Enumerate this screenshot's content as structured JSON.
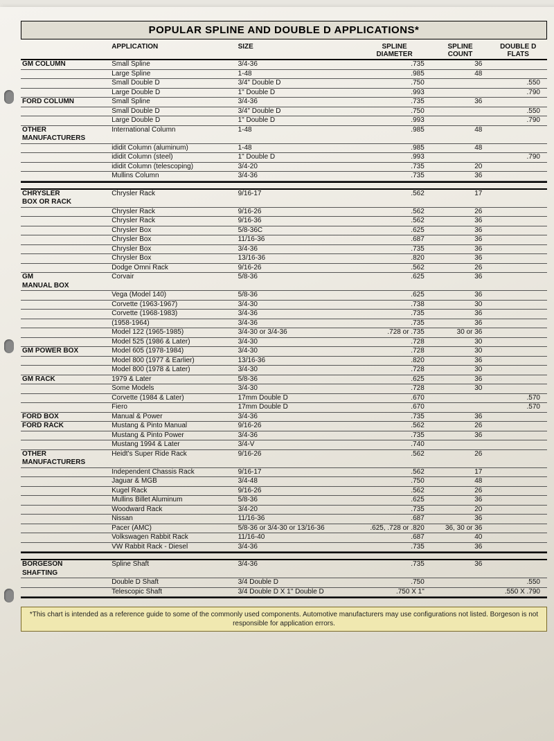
{
  "title": "POPULAR SPLINE AND DOUBLE D APPLICATIONS*",
  "columns": {
    "c1": "",
    "c2": "APPLICATION",
    "c3": "SIZE",
    "c4": "SPLINE",
    "c4b": "DIAMETER",
    "c5": "SPLINE",
    "c5b": "COUNT",
    "c6": "DOUBLE D",
    "c6b": "FLATS"
  },
  "sections": [
    {
      "cat": "GM COLUMN",
      "rows": [
        {
          "app": "Small Spline",
          "size": "3/4-36",
          "dia": ".735",
          "cnt": "36",
          "flat": ""
        },
        {
          "app": "Large Spline",
          "size": "1-48",
          "dia": ".985",
          "cnt": "48",
          "flat": ""
        },
        {
          "app": "Small Double D",
          "size": "3/4\" Double D",
          "dia": ".750",
          "cnt": "",
          "flat": ".550"
        },
        {
          "app": "Large Double D",
          "size": "1\" Double D",
          "dia": ".993",
          "cnt": "",
          "flat": ".790"
        }
      ]
    },
    {
      "cat": "FORD COLUMN",
      "rows": [
        {
          "app": "Small Spline",
          "size": "3/4-36",
          "dia": ".735",
          "cnt": "36",
          "flat": ""
        },
        {
          "app": "Small Double D",
          "size": "3/4\" Double D",
          "dia": ".750",
          "cnt": "",
          "flat": ".550"
        },
        {
          "app": "Large Double D",
          "size": "1\" Double D",
          "dia": ".993",
          "cnt": "",
          "flat": ".790"
        }
      ]
    },
    {
      "cat": "OTHER MANUFACTURERS",
      "rows": [
        {
          "app": "International Column",
          "size": "1-48",
          "dia": ".985",
          "cnt": "48",
          "flat": ""
        },
        {
          "app": "ididit Column (aluminum)",
          "size": "1-48",
          "dia": ".985",
          "cnt": "48",
          "flat": ""
        },
        {
          "app": "ididit Column (steel)",
          "size": "1\" Double D",
          "dia": ".993",
          "cnt": "",
          "flat": ".790"
        },
        {
          "app": "ididit Column (telescoping)",
          "size": "3/4-20",
          "dia": ".735",
          "cnt": "20",
          "flat": ""
        },
        {
          "app": "Mullins Column",
          "size": "3/4-36",
          "dia": ".735",
          "cnt": "36",
          "flat": ""
        }
      ]
    }
  ],
  "sections2": [
    {
      "cat": "CHRYSLER BOX OR RACK",
      "rows": [
        {
          "app": "Chrysler Rack",
          "size": "9/16-17",
          "dia": ".562",
          "cnt": "17",
          "flat": ""
        },
        {
          "app": "Chrysler Rack",
          "size": "9/16-26",
          "dia": ".562",
          "cnt": "26",
          "flat": ""
        },
        {
          "app": "Chrysler Rack",
          "size": "9/16-36",
          "dia": ".562",
          "cnt": "36",
          "flat": ""
        },
        {
          "app": "Chrysler Box",
          "size": "5/8-36C",
          "dia": ".625",
          "cnt": "36",
          "flat": ""
        },
        {
          "app": "Chrysler Box",
          "size": "11/16-36",
          "dia": ".687",
          "cnt": "36",
          "flat": ""
        },
        {
          "app": "Chrysler Box",
          "size": "3/4-36",
          "dia": ".735",
          "cnt": "36",
          "flat": ""
        },
        {
          "app": "Chrysler Box",
          "size": "13/16-36",
          "dia": ".820",
          "cnt": "36",
          "flat": ""
        },
        {
          "app": "Dodge Omni Rack",
          "size": "9/16-26",
          "dia": ".562",
          "cnt": "26",
          "flat": ""
        }
      ]
    },
    {
      "cat": "GM MANUAL BOX",
      "rows": [
        {
          "app": "Corvair",
          "size": "5/8-36",
          "dia": ".625",
          "cnt": "36",
          "flat": ""
        },
        {
          "app": "Vega (Model 140)",
          "size": "5/8-36",
          "dia": ".625",
          "cnt": "36",
          "flat": ""
        },
        {
          "app": "Corvette (1963-1967)",
          "size": "3/4-30",
          "dia": ".738",
          "cnt": "30",
          "flat": ""
        },
        {
          "app": "Corvette (1968-1983)",
          "size": "3/4-36",
          "dia": ".735",
          "cnt": "36",
          "flat": ""
        },
        {
          "app": "(1958-1964)",
          "size": "3/4-36",
          "dia": ".735",
          "cnt": "36",
          "flat": ""
        },
        {
          "app": "Model 122 (1965-1985)",
          "size": "3/4-30 or 3/4-36",
          "dia": ".728 or .735",
          "cnt": "30 or 36",
          "flat": ""
        },
        {
          "app": "Model 525 (1986 & Later)",
          "size": "3/4-30",
          "dia": ".728",
          "cnt": "30",
          "flat": ""
        }
      ]
    },
    {
      "cat": "GM POWER BOX",
      "rows": [
        {
          "app": "Model 605 (1978-1984)",
          "size": "3/4-30",
          "dia": ".728",
          "cnt": "30",
          "flat": ""
        },
        {
          "app": "Model 800 (1977 & Earlier)",
          "size": "13/16-36",
          "dia": ".820",
          "cnt": "36",
          "flat": ""
        },
        {
          "app": "Model 800 (1978 & Later)",
          "size": "3/4-30",
          "dia": ".728",
          "cnt": "30",
          "flat": ""
        }
      ]
    },
    {
      "cat": "GM RACK",
      "rows": [
        {
          "app": "1979 & Later",
          "size": "5/8-36",
          "dia": ".625",
          "cnt": "36",
          "flat": ""
        },
        {
          "app": "Some Models",
          "size": "3/4-30",
          "dia": ".728",
          "cnt": "30",
          "flat": ""
        },
        {
          "app": "Corvette (1984 & Later)",
          "size": "17mm Double D",
          "dia": ".670",
          "cnt": "",
          "flat": ".570"
        },
        {
          "app": "Fiero",
          "size": "17mm Double D",
          "dia": ".670",
          "cnt": "",
          "flat": ".570"
        }
      ]
    },
    {
      "cat": "FORD BOX",
      "rows": [
        {
          "app": "Manual & Power",
          "size": "3/4-36",
          "dia": ".735",
          "cnt": "36",
          "flat": ""
        }
      ]
    },
    {
      "cat": "FORD RACK",
      "rows": [
        {
          "app": "Mustang & Pinto Manual",
          "size": "9/16-26",
          "dia": ".562",
          "cnt": "26",
          "flat": ""
        },
        {
          "app": "Mustang & Pinto Power",
          "size": "3/4-36",
          "dia": ".735",
          "cnt": "36",
          "flat": ""
        },
        {
          "app": "Mustang 1994 & Later",
          "size": "3/4-V",
          "dia": ".740",
          "cnt": "",
          "flat": ""
        }
      ]
    },
    {
      "cat": "OTHER MANUFACTURERS",
      "rows": [
        {
          "app": "Heidt's Super Ride Rack",
          "size": "9/16-26",
          "dia": ".562",
          "cnt": "26",
          "flat": ""
        },
        {
          "app": "Independent Chassis Rack",
          "size": "9/16-17",
          "dia": ".562",
          "cnt": "17",
          "flat": ""
        },
        {
          "app": "Jaguar & MGB",
          "size": "3/4-48",
          "dia": ".750",
          "cnt": "48",
          "flat": ""
        },
        {
          "app": "Kugel Rack",
          "size": "9/16-26",
          "dia": ".562",
          "cnt": "26",
          "flat": ""
        },
        {
          "app": "Mullins Billet Aluminum",
          "size": "5/8-36",
          "dia": ".625",
          "cnt": "36",
          "flat": ""
        },
        {
          "app": "Woodward Rack",
          "size": "3/4-20",
          "dia": ".735",
          "cnt": "20",
          "flat": ""
        },
        {
          "app": "Nissan",
          "size": "11/16-36",
          "dia": ".687",
          "cnt": "36",
          "flat": ""
        },
        {
          "app": "Pacer (AMC)",
          "size": "5/8-36 or 3/4-30 or 13/16-36",
          "dia": ".625, .728 or .820",
          "cnt": "36, 30 or 36",
          "flat": ""
        },
        {
          "app": "Volkswagen Rabbit Rack",
          "size": "11/16-40",
          "dia": ".687",
          "cnt": "40",
          "flat": ""
        },
        {
          "app": "VW Rabbit Rack - Diesel",
          "size": "3/4-36",
          "dia": ".735",
          "cnt": "36",
          "flat": ""
        }
      ]
    }
  ],
  "sections3": [
    {
      "cat": "BORGESON SHAFTING",
      "rows": [
        {
          "app": "Spline Shaft",
          "size": "3/4-36",
          "dia": ".735",
          "cnt": "36",
          "flat": ""
        },
        {
          "app": "Double D Shaft",
          "size": "3/4 Double D",
          "dia": ".750",
          "cnt": "",
          "flat": ".550"
        },
        {
          "app": "Telescopic Shaft",
          "size": "3/4 Double D X 1\" Double D",
          "dia": ".750 X 1\"",
          "cnt": "",
          "flat": ".550 X .790"
        }
      ]
    }
  ],
  "footnote": "*This chart is intended as a reference guide to some of the commonly used components. Automotive manufacturers may use configurations not listed. Borgeson is not responsible for application errors.",
  "colwidths": {
    "c1": "17%",
    "c2": "24%",
    "c3": "23%",
    "c4": "14%",
    "c5": "11%",
    "c6": "11%"
  },
  "colors": {
    "title_bg": "#e0ddd2",
    "foot_bg": "#f0e8b0",
    "page": "#efece4"
  }
}
